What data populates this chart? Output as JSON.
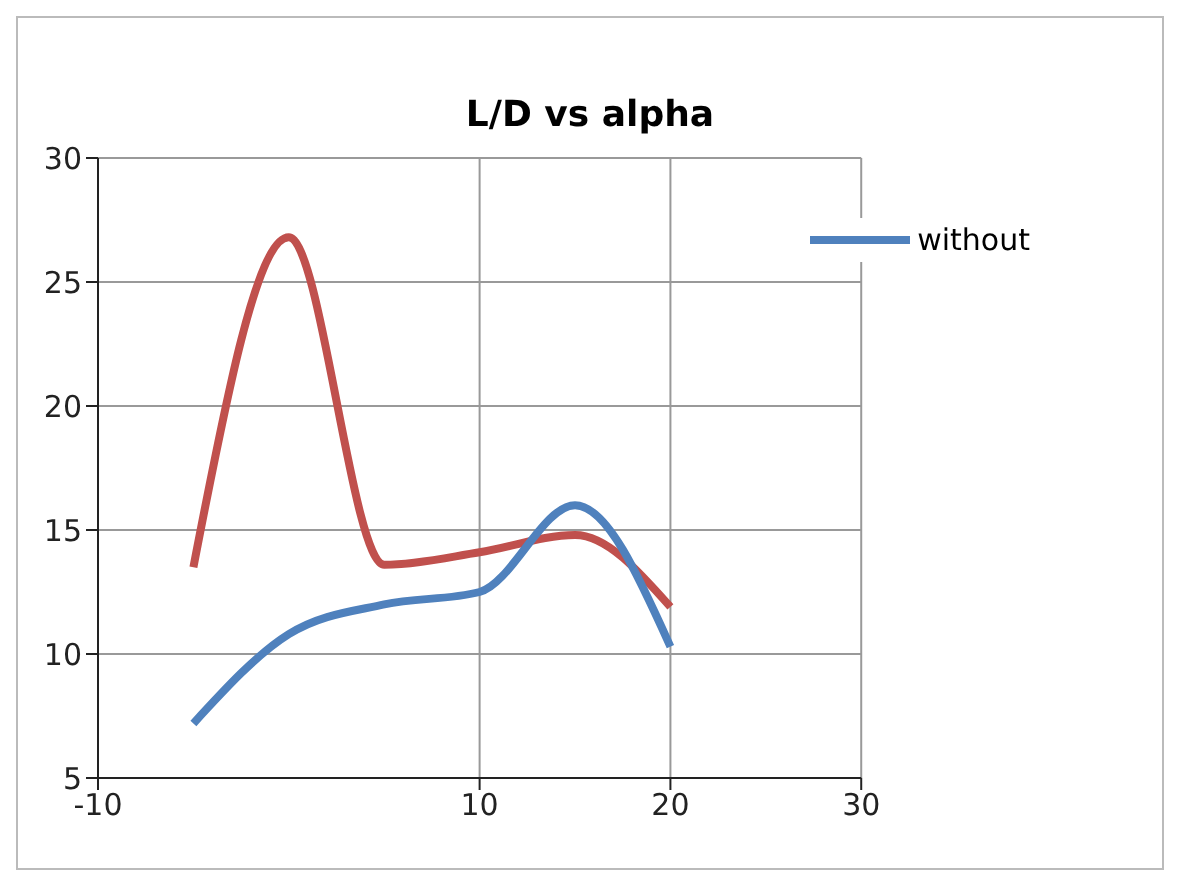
{
  "chart_data": {
    "type": "line",
    "title": "L/D vs alpha",
    "x": [
      -5,
      0,
      5,
      10,
      15,
      20
    ],
    "series": [
      {
        "color": "#c0504d",
        "values": [
          13.5,
          26.8,
          13.6,
          14.1,
          14.8,
          11.9
        ]
      },
      {
        "name": "without",
        "color": "#4f81bd",
        "values": [
          7.2,
          10.8,
          12.0,
          12.5,
          16.0,
          10.3
        ]
      }
    ],
    "xlim": [
      -10,
      30
    ],
    "xticks": [
      -10,
      10,
      20,
      30
    ],
    "ylim": [
      5,
      30
    ],
    "yticks": [
      5,
      10,
      15,
      20,
      25,
      30
    ],
    "grid": true,
    "legend": "top right",
    "marker": "none",
    "line_style": "solid"
  }
}
